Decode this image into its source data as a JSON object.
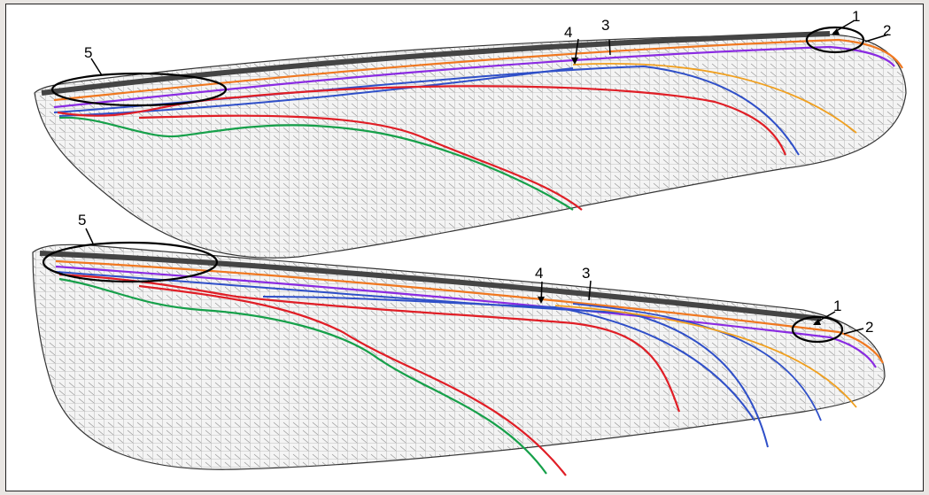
{
  "figure": {
    "top_wing": {
      "labels": [
        {
          "id": "1",
          "text": "1"
        },
        {
          "id": "2",
          "text": "2"
        },
        {
          "id": "3",
          "text": "3"
        },
        {
          "id": "4",
          "text": "4"
        },
        {
          "id": "5",
          "text": "5"
        }
      ]
    },
    "bottom_wing": {
      "labels": [
        {
          "id": "1",
          "text": "1"
        },
        {
          "id": "2",
          "text": "2"
        },
        {
          "id": "3",
          "text": "3"
        },
        {
          "id": "4",
          "text": "4"
        },
        {
          "id": "5",
          "text": "5"
        }
      ]
    },
    "vein_colors": {
      "costa": "#444444",
      "orange": "#f07820",
      "purple": "#8a2be2",
      "blue": "#2f4fc8",
      "red": "#e01e26",
      "green": "#16a04a",
      "amber": "#f0a020",
      "cell": "#555555"
    }
  }
}
